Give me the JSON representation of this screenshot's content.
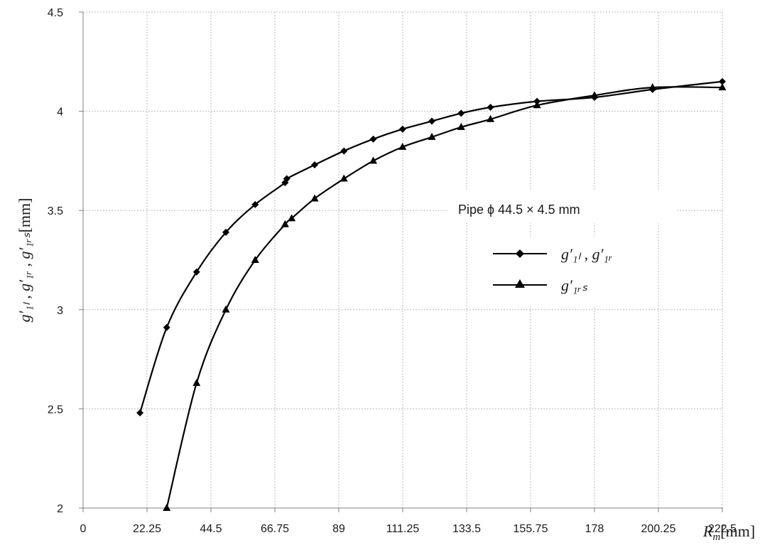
{
  "chart_data": {
    "type": "line",
    "title": "",
    "annotation": "Pipe  ϕ 44.5 × 4.5 mm",
    "xlabel": "R",
    "xlabel_sub": "m",
    "xunit": "[mm]",
    "ylabel": "g′₁ₗ , g′₁ᵣ , g′₁ᵣₛ",
    "yunit": "[mm]",
    "xlim": [
      0,
      222.5
    ],
    "ylim": [
      2,
      4.5
    ],
    "x_ticks": [
      "0",
      "22.25",
      "44.5",
      "66.75",
      "89",
      "111.25",
      "133.5",
      "155.75",
      "178",
      "200.25",
      "222.5"
    ],
    "y_ticks": [
      "2",
      "2.5",
      "3",
      "3.5",
      "4",
      "4.5"
    ],
    "grid": true,
    "legend_position": "center-right",
    "series": [
      {
        "name": "g′₁ₗ , g′₁ᵣ",
        "marker": "diamond",
        "color": "#000000",
        "x": [
          19.8,
          29.1,
          39.5,
          49.7,
          59.9,
          70.3,
          70.9,
          80.6,
          90.8,
          101.0,
          111.2,
          121.4,
          131.6,
          141.8,
          158.0,
          178.0,
          198.2,
          222.5
        ],
        "y": [
          2.48,
          2.91,
          3.19,
          3.39,
          3.53,
          3.64,
          3.66,
          3.73,
          3.8,
          3.86,
          3.91,
          3.95,
          3.99,
          4.02,
          4.05,
          4.07,
          4.11,
          4.15
        ]
      },
      {
        "name": "g′₁ᵣₛ",
        "marker": "triangle",
        "color": "#000000",
        "x": [
          29.1,
          39.5,
          49.7,
          59.9,
          70.3,
          72.6,
          80.6,
          90.8,
          101.0,
          111.2,
          121.4,
          131.6,
          141.8,
          158.0,
          178.0,
          198.2,
          222.5
        ],
        "y": [
          2.0,
          2.63,
          3.0,
          3.25,
          3.43,
          3.46,
          3.56,
          3.66,
          3.75,
          3.82,
          3.87,
          3.92,
          3.96,
          4.03,
          4.08,
          4.12,
          4.12
        ]
      }
    ]
  }
}
